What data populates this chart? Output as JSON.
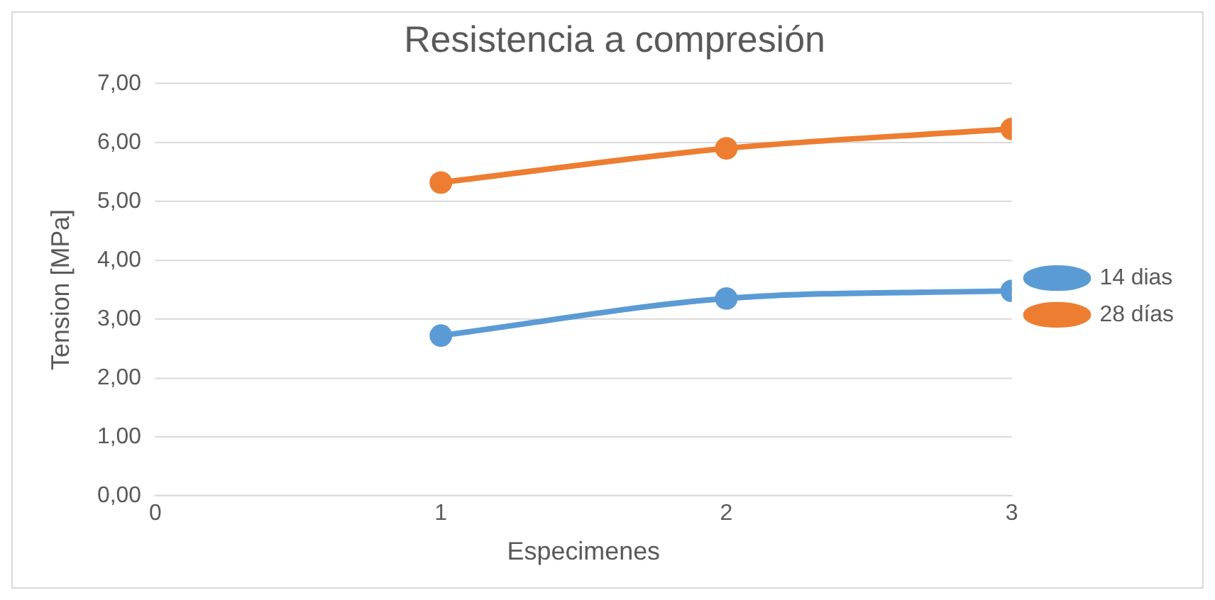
{
  "chart_data": {
    "type": "line",
    "title": "Resistencia a compresión",
    "xlabel": "Especimenes",
    "ylabel": "Tension [MPa]",
    "x": [
      1,
      2,
      3
    ],
    "series": [
      {
        "name": "14 dias",
        "color": "#5b9bd5",
        "values": [
          2.72,
          3.35,
          3.48
        ]
      },
      {
        "name": "28 días",
        "color": "#ed7d31",
        "values": [
          5.32,
          5.9,
          6.23
        ]
      }
    ],
    "xlim": [
      0,
      3
    ],
    "xticks": [
      0,
      1,
      2,
      3
    ],
    "ylim": [
      0,
      7
    ],
    "yticks": [
      {
        "value": 0,
        "label": "0,00"
      },
      {
        "value": 1,
        "label": "1,00"
      },
      {
        "value": 2,
        "label": "2,00"
      },
      {
        "value": 3,
        "label": "3,00"
      },
      {
        "value": 4,
        "label": "4,00"
      },
      {
        "value": 5,
        "label": "5,00"
      },
      {
        "value": 6,
        "label": "6,00"
      },
      {
        "value": 7,
        "label": "7,00"
      }
    ],
    "grid": "y",
    "legend": "right",
    "marker": "circle",
    "line_style": "solid"
  }
}
